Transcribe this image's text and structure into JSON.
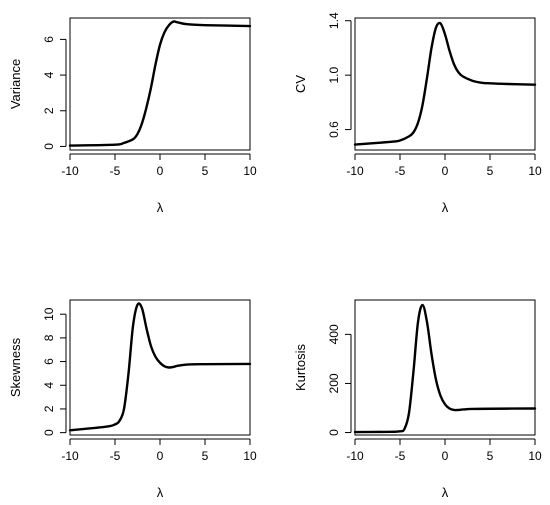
{
  "chart_data": [
    {
      "type": "line",
      "xlabel": "λ",
      "ylabel": "Variance",
      "xlim": [
        -10,
        10
      ],
      "ylim": [
        -0.2,
        7.2
      ],
      "xticks": [
        -10,
        -5,
        0,
        5,
        10
      ],
      "yticks": [
        0,
        2,
        4,
        6
      ],
      "grid": false,
      "series": [
        {
          "color": "#000000",
          "x": [
            -10,
            -5,
            -4,
            -3,
            -2.5,
            -2,
            -1.5,
            -1,
            -0.5,
            0,
            0.5,
            1,
            1.5,
            2,
            3,
            5,
            10
          ],
          "y": [
            0.05,
            0.1,
            0.2,
            0.4,
            0.7,
            1.3,
            2.2,
            3.3,
            4.6,
            5.7,
            6.4,
            6.8,
            7.0,
            6.95,
            6.85,
            6.8,
            6.75
          ]
        }
      ]
    },
    {
      "type": "line",
      "xlabel": "λ",
      "ylabel": "CV",
      "xlim": [
        -10,
        10
      ],
      "ylim": [
        0.45,
        1.42
      ],
      "xticks": [
        -10,
        -5,
        0,
        5,
        10
      ],
      "yticks": [
        0.6,
        1.0,
        1.4
      ],
      "ytick_labels": [
        "0.6",
        "1.0",
        "1.4"
      ],
      "grid": false,
      "series": [
        {
          "color": "#000000",
          "x": [
            -10,
            -6,
            -5,
            -4,
            -3.5,
            -3,
            -2.5,
            -2,
            -1.5,
            -1,
            -0.5,
            0,
            0.5,
            1,
            1.5,
            2,
            3,
            4,
            5,
            7,
            10
          ],
          "y": [
            0.49,
            0.51,
            0.52,
            0.55,
            0.58,
            0.65,
            0.78,
            0.98,
            1.2,
            1.35,
            1.38,
            1.3,
            1.18,
            1.08,
            1.02,
            0.99,
            0.96,
            0.945,
            0.94,
            0.935,
            0.93
          ]
        }
      ]
    },
    {
      "type": "line",
      "xlabel": "λ",
      "ylabel": "Skewness",
      "xlim": [
        -10,
        10
      ],
      "ylim": [
        -0.2,
        11.2
      ],
      "xticks": [
        -10,
        -5,
        0,
        5,
        10
      ],
      "yticks": [
        0,
        2,
        4,
        6,
        8,
        10
      ],
      "grid": false,
      "series": [
        {
          "color": "#000000",
          "x": [
            -10,
            -6,
            -5,
            -4.5,
            -4,
            -3.5,
            -3,
            -2.5,
            -2,
            -1.5,
            -1,
            -0.5,
            0,
            0.5,
            1,
            1.5,
            2,
            3,
            5,
            10
          ],
          "y": [
            0.2,
            0.5,
            0.7,
            1.0,
            2.0,
            5.0,
            9.0,
            10.8,
            10.5,
            8.8,
            7.3,
            6.4,
            5.9,
            5.6,
            5.5,
            5.55,
            5.65,
            5.75,
            5.78,
            5.8
          ]
        }
      ]
    },
    {
      "type": "line",
      "xlabel": "λ",
      "ylabel": "Kurtosis",
      "xlim": [
        -10,
        10
      ],
      "ylim": [
        -10,
        540
      ],
      "xticks": [
        -10,
        -5,
        0,
        5,
        10
      ],
      "yticks": [
        0,
        200,
        400
      ],
      "grid": false,
      "series": [
        {
          "color": "#000000",
          "x": [
            -10,
            -6,
            -5,
            -4.5,
            -4,
            -3.5,
            -3,
            -2.5,
            -2,
            -1.5,
            -1,
            -0.5,
            0,
            0.5,
            1,
            1.5,
            2,
            3,
            5,
            10
          ],
          "y": [
            2,
            3,
            5,
            15,
            80,
            250,
            450,
            520,
            450,
            320,
            215,
            150,
            115,
            98,
            92,
            92,
            94,
            96,
            97,
            98
          ]
        }
      ]
    }
  ]
}
